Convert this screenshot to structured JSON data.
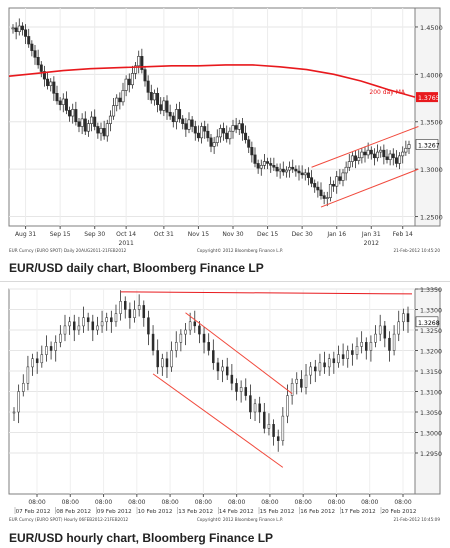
{
  "charts": {
    "daily": {
      "caption": "EUR/USD daily chart, Bloomberg Finance LP",
      "footer_left": "EUR Curncy (EURO SPOT)  Daily 20AUG2011-21FEB2012",
      "footer_center": "Copyright© 2012 Bloomberg Finance L.P.",
      "footer_right": "21-Feb-2012 10:45:20"
    },
    "hourly": {
      "caption": "EUR/USD hourly chart, Bloomberg Finance LP",
      "footer_left": "EUR Curncy (EURO SPOT)  Hourly 06FEB2012-21FEB2012",
      "footer_center": "Copyright© 2012 Bloomberg Finance L.P.",
      "footer_right": "21-Feb-2012 10:45:09"
    }
  },
  "chart_data": [
    {
      "type": "line",
      "title": "",
      "ylim": [
        1.24,
        1.47
      ],
      "y_ticks": [
        "1.4500",
        "1.4000",
        "1.3500",
        "1.3000",
        "1.2500"
      ],
      "y_tick_values": [
        1.45,
        1.4,
        1.35,
        1.3,
        1.25
      ],
      "x_tick_labels": [
        "Aug 31",
        "Sep 15",
        "Sep 30",
        "Oct 14",
        "Oct 31",
        "Nov 15",
        "Nov 30",
        "Dec 15",
        "Dec 30",
        "Jan 16",
        "Jan 31",
        "Feb 14"
      ],
      "x_tick_index": [
        4,
        15,
        26,
        36,
        48,
        59,
        70,
        81,
        92,
        103,
        114,
        124
      ],
      "year_labels": [
        "2011",
        "2012"
      ],
      "year_label_index": [
        36,
        114
      ],
      "series": [
        {
          "name": "EUR/USD",
          "values": [
            1.449,
            1.445,
            1.451,
            1.447,
            1.44,
            1.432,
            1.425,
            1.418,
            1.41,
            1.403,
            1.395,
            1.388,
            1.392,
            1.38,
            1.372,
            1.368,
            1.374,
            1.362,
            1.356,
            1.363,
            1.35,
            1.345,
            1.353,
            1.34,
            1.348,
            1.355,
            1.345,
            1.338,
            1.343,
            1.335,
            1.348,
            1.356,
            1.367,
            1.375,
            1.371,
            1.383,
            1.395,
            1.389,
            1.401,
            1.409,
            1.419,
            1.405,
            1.393,
            1.381,
            1.373,
            1.38,
            1.368,
            1.362,
            1.372,
            1.36,
            1.356,
            1.35,
            1.363,
            1.353,
            1.348,
            1.342,
            1.352,
            1.345,
            1.338,
            1.333,
            1.345,
            1.34,
            1.333,
            1.324,
            1.328,
            1.334,
            1.343,
            1.338,
            1.332,
            1.34,
            1.346,
            1.342,
            1.348,
            1.338,
            1.331,
            1.323,
            1.315,
            1.306,
            1.301,
            1.304,
            1.308,
            1.306,
            1.304,
            1.302,
            1.298,
            1.3,
            1.297,
            1.299,
            1.302,
            1.3,
            1.298,
            1.296,
            1.294,
            1.296,
            1.291,
            1.285,
            1.281,
            1.278,
            1.272,
            1.269,
            1.27,
            1.284,
            1.282,
            1.292,
            1.288,
            1.296,
            1.302,
            1.308,
            1.314,
            1.309,
            1.312,
            1.318,
            1.315,
            1.32,
            1.316,
            1.312,
            1.318,
            1.32,
            1.313,
            1.31,
            1.316,
            1.312,
            1.306,
            1.314,
            1.318,
            1.322,
            1.326
          ]
        },
        {
          "name": "200 day MA",
          "values": [
            1.398,
            1.401,
            1.404,
            1.406,
            1.407,
            1.408,
            1.409,
            1.409,
            1.41,
            1.41,
            1.408,
            1.405,
            1.4,
            1.393,
            1.384,
            1.376
          ]
        }
      ],
      "ma_label": "200 day MA",
      "ma_value_label": "1.3765",
      "last_value_label": "1.3267",
      "colors": {
        "ma_line": "#e8191d",
        "trend_line": "#f14a3d",
        "bar": "#2b2b2b"
      }
    },
    {
      "type": "line",
      "title": "",
      "ylim": [
        1.285,
        1.335
      ],
      "y_ticks": [
        "1.3350",
        "1.3300",
        "1.3250",
        "1.3200",
        "1.3150",
        "1.3100",
        "1.3050",
        "1.3000",
        "1.2950"
      ],
      "y_tick_values": [
        1.335,
        1.33,
        1.325,
        1.32,
        1.315,
        1.31,
        1.305,
        1.3,
        1.295
      ],
      "x_tick_labels": [
        "08:00",
        "08:00",
        "08:00",
        "08:00",
        "08:00",
        "08:00",
        "08:00",
        "08:00",
        "08:00",
        "08:00",
        "08:00",
        "08:00"
      ],
      "x_date_labels": [
        "07 Feb 2012",
        "08 Feb 2012",
        "09 Feb 2012",
        "10 Feb 2012",
        "13 Feb 2012",
        "14 Feb 2012",
        "15 Feb 2012",
        "16 Feb 2012",
        "17 Feb 2012",
        "20 Feb 2012"
      ],
      "series": [
        {
          "name": "EUR/USD",
          "values": [
            1.305,
            1.31,
            1.312,
            1.316,
            1.318,
            1.317,
            1.319,
            1.321,
            1.32,
            1.322,
            1.324,
            1.326,
            1.327,
            1.325,
            1.326,
            1.328,
            1.327,
            1.325,
            1.326,
            1.327,
            1.328,
            1.327,
            1.329,
            1.332,
            1.33,
            1.328,
            1.33,
            1.331,
            1.328,
            1.324,
            1.32,
            1.316,
            1.318,
            1.316,
            1.32,
            1.322,
            1.324,
            1.325,
            1.327,
            1.326,
            1.324,
            1.322,
            1.32,
            1.317,
            1.315,
            1.316,
            1.314,
            1.312,
            1.31,
            1.311,
            1.309,
            1.305,
            1.307,
            1.305,
            1.301,
            1.302,
            1.299,
            1.298,
            1.304,
            1.309,
            1.312,
            1.313,
            1.311,
            1.314,
            1.316,
            1.315,
            1.317,
            1.316,
            1.318,
            1.317,
            1.319,
            1.318,
            1.32,
            1.319,
            1.321,
            1.322,
            1.32,
            1.322,
            1.324,
            1.326,
            1.323,
            1.32,
            1.324,
            1.327,
            1.329,
            1.327
          ]
        }
      ],
      "last_value_label": "1.3268",
      "colors": {
        "resistance_line": "#e8191d",
        "channel_line": "#f14a3d",
        "bar": "#2b2b2b"
      }
    }
  ]
}
